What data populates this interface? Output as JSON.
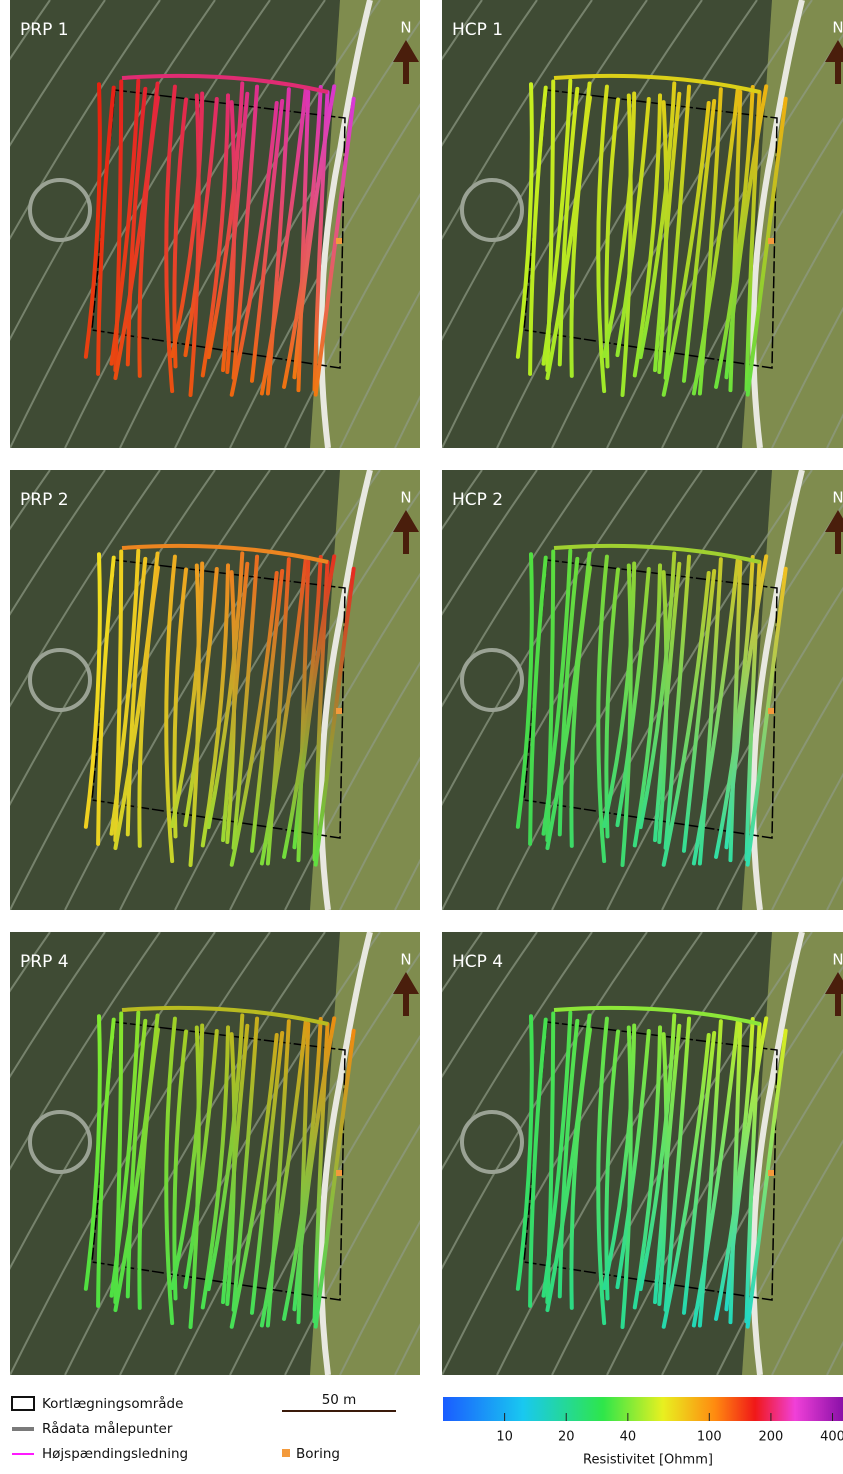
{
  "panels": [
    {
      "title": "PRP 1",
      "north": "N"
    },
    {
      "title": "HCP 1",
      "north": "N"
    },
    {
      "title": "PRP 2",
      "north": "N"
    },
    {
      "title": "HCP 2",
      "north": "N"
    },
    {
      "title": "PRP 4",
      "north": "N"
    },
    {
      "title": "HCP 4",
      "north": "N"
    }
  ],
  "legend": {
    "items": [
      "Kortlægningsområde",
      "Rådata målepunter",
      "Højspændingsledning",
      "Boring"
    ],
    "scale_bar": "50 m"
  },
  "colorbar": {
    "label": "Resistivitet [Ohmm]",
    "log_scale": true,
    "lim": [
      5,
      450
    ],
    "ticks": [
      10,
      20,
      40,
      100,
      200,
      400
    ]
  }
}
